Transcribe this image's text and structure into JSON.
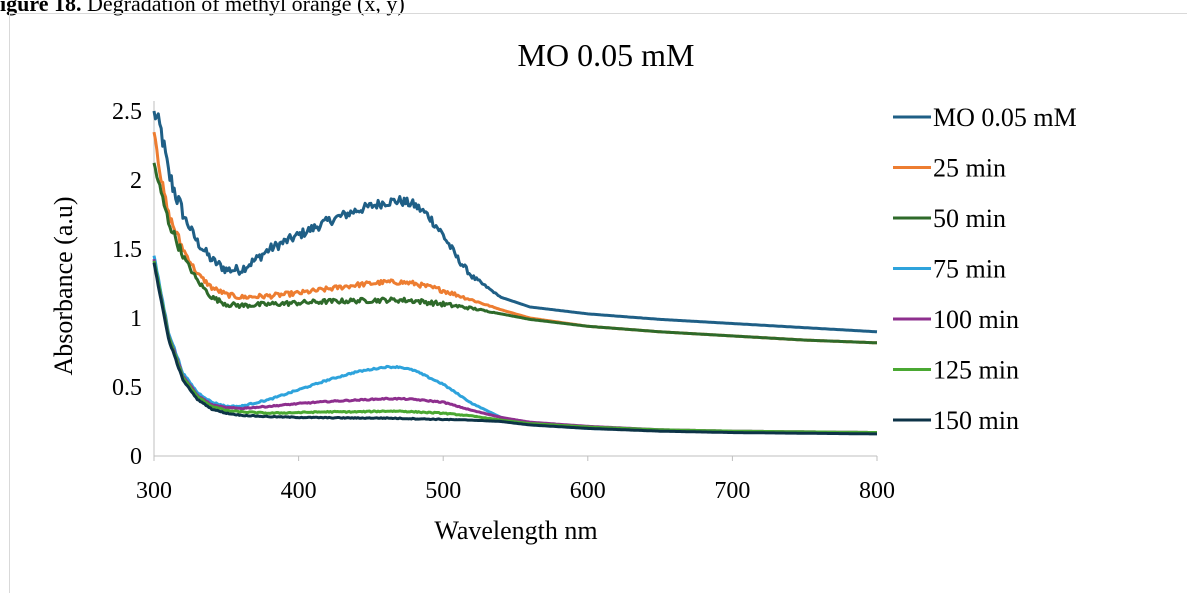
{
  "caption": {
    "bold": "igure 18.",
    "text": " Degradation of methyl orange (x, y)"
  },
  "chart_data": {
    "type": "line",
    "title": "MO 0.05 mM",
    "xlabel": "Wavelength nm",
    "ylabel": "Absorbance (a.u)",
    "xlim": [
      300,
      800
    ],
    "ylim": [
      0,
      2.5
    ],
    "x_ticks": [
      "300",
      "400",
      "500",
      "600",
      "700",
      "800"
    ],
    "y_ticks": [
      "0",
      "0.5",
      "1",
      "1.5",
      "2",
      "2.5"
    ],
    "grid": false,
    "legend_position": "right",
    "series": [
      {
        "name": "MO 0.05 mM",
        "color": "#1f5f86",
        "noise": 0.07,
        "points": [
          [
            300,
            2.5
          ],
          [
            305,
            2.35
          ],
          [
            310,
            2.05
          ],
          [
            320,
            1.75
          ],
          [
            330,
            1.55
          ],
          [
            340,
            1.42
          ],
          [
            350,
            1.35
          ],
          [
            360,
            1.35
          ],
          [
            370,
            1.42
          ],
          [
            380,
            1.5
          ],
          [
            400,
            1.6
          ],
          [
            420,
            1.7
          ],
          [
            440,
            1.78
          ],
          [
            460,
            1.84
          ],
          [
            470,
            1.85
          ],
          [
            480,
            1.82
          ],
          [
            490,
            1.74
          ],
          [
            500,
            1.6
          ],
          [
            510,
            1.43
          ],
          [
            520,
            1.3
          ],
          [
            540,
            1.15
          ],
          [
            560,
            1.08
          ],
          [
            600,
            1.03
          ],
          [
            650,
            0.99
          ],
          [
            700,
            0.96
          ],
          [
            750,
            0.93
          ],
          [
            800,
            0.9
          ]
        ]
      },
      {
        "name": "25 min",
        "color": "#ed7d31",
        "noise": 0.035,
        "points": [
          [
            300,
            2.38
          ],
          [
            305,
            2.0
          ],
          [
            310,
            1.75
          ],
          [
            320,
            1.5
          ],
          [
            330,
            1.32
          ],
          [
            340,
            1.22
          ],
          [
            350,
            1.17
          ],
          [
            360,
            1.15
          ],
          [
            380,
            1.16
          ],
          [
            400,
            1.18
          ],
          [
            420,
            1.21
          ],
          [
            440,
            1.24
          ],
          [
            460,
            1.26
          ],
          [
            470,
            1.26
          ],
          [
            480,
            1.25
          ],
          [
            500,
            1.2
          ],
          [
            520,
            1.13
          ],
          [
            540,
            1.06
          ],
          [
            560,
            1.0
          ],
          [
            600,
            0.94
          ],
          [
            650,
            0.9
          ],
          [
            700,
            0.87
          ],
          [
            750,
            0.84
          ],
          [
            800,
            0.82
          ]
        ]
      },
      {
        "name": "50 min",
        "color": "#2e6a2a",
        "noise": 0.035,
        "points": [
          [
            300,
            2.12
          ],
          [
            305,
            1.9
          ],
          [
            310,
            1.7
          ],
          [
            320,
            1.45
          ],
          [
            330,
            1.27
          ],
          [
            340,
            1.15
          ],
          [
            350,
            1.1
          ],
          [
            360,
            1.09
          ],
          [
            380,
            1.1
          ],
          [
            400,
            1.11
          ],
          [
            420,
            1.12
          ],
          [
            440,
            1.125
          ],
          [
            460,
            1.13
          ],
          [
            470,
            1.13
          ],
          [
            480,
            1.125
          ],
          [
            500,
            1.1
          ],
          [
            520,
            1.07
          ],
          [
            540,
            1.03
          ],
          [
            560,
            0.99
          ],
          [
            600,
            0.94
          ],
          [
            650,
            0.9
          ],
          [
            700,
            0.87
          ],
          [
            750,
            0.84
          ],
          [
            800,
            0.82
          ]
        ]
      },
      {
        "name": "75 min",
        "color": "#2ea3dc",
        "noise": 0.01,
        "points": [
          [
            300,
            1.45
          ],
          [
            310,
            0.9
          ],
          [
            320,
            0.6
          ],
          [
            330,
            0.46
          ],
          [
            340,
            0.39
          ],
          [
            350,
            0.36
          ],
          [
            360,
            0.36
          ],
          [
            380,
            0.41
          ],
          [
            400,
            0.48
          ],
          [
            420,
            0.55
          ],
          [
            440,
            0.61
          ],
          [
            460,
            0.645
          ],
          [
            470,
            0.645
          ],
          [
            480,
            0.62
          ],
          [
            500,
            0.52
          ],
          [
            520,
            0.38
          ],
          [
            540,
            0.28
          ],
          [
            560,
            0.23
          ],
          [
            600,
            0.2
          ],
          [
            650,
            0.185
          ],
          [
            700,
            0.175
          ],
          [
            750,
            0.17
          ],
          [
            800,
            0.165
          ]
        ]
      },
      {
        "name": "100 min",
        "color": "#8e2f8e",
        "noise": 0.008,
        "points": [
          [
            300,
            1.42
          ],
          [
            310,
            0.88
          ],
          [
            320,
            0.58
          ],
          [
            330,
            0.44
          ],
          [
            340,
            0.37
          ],
          [
            350,
            0.35
          ],
          [
            360,
            0.345
          ],
          [
            380,
            0.36
          ],
          [
            400,
            0.38
          ],
          [
            420,
            0.395
          ],
          [
            440,
            0.405
          ],
          [
            460,
            0.415
          ],
          [
            470,
            0.415
          ],
          [
            480,
            0.41
          ],
          [
            500,
            0.39
          ],
          [
            520,
            0.33
          ],
          [
            540,
            0.28
          ],
          [
            560,
            0.245
          ],
          [
            600,
            0.215
          ],
          [
            650,
            0.19
          ],
          [
            700,
            0.18
          ],
          [
            750,
            0.175
          ],
          [
            800,
            0.17
          ]
        ]
      },
      {
        "name": "125 min",
        "color": "#4aa832",
        "noise": 0.008,
        "points": [
          [
            300,
            1.42
          ],
          [
            310,
            0.87
          ],
          [
            320,
            0.57
          ],
          [
            330,
            0.43
          ],
          [
            340,
            0.36
          ],
          [
            350,
            0.33
          ],
          [
            360,
            0.32
          ],
          [
            380,
            0.31
          ],
          [
            400,
            0.315
          ],
          [
            420,
            0.32
          ],
          [
            440,
            0.32
          ],
          [
            460,
            0.325
          ],
          [
            470,
            0.325
          ],
          [
            480,
            0.32
          ],
          [
            500,
            0.31
          ],
          [
            520,
            0.29
          ],
          [
            540,
            0.26
          ],
          [
            560,
            0.235
          ],
          [
            600,
            0.21
          ],
          [
            650,
            0.19
          ],
          [
            700,
            0.18
          ],
          [
            750,
            0.175
          ],
          [
            800,
            0.17
          ]
        ]
      },
      {
        "name": "150 min",
        "color": "#0d3347",
        "noise": 0.006,
        "points": [
          [
            300,
            1.4
          ],
          [
            310,
            0.85
          ],
          [
            320,
            0.55
          ],
          [
            330,
            0.41
          ],
          [
            340,
            0.34
          ],
          [
            350,
            0.31
          ],
          [
            360,
            0.295
          ],
          [
            380,
            0.285
          ],
          [
            400,
            0.28
          ],
          [
            440,
            0.275
          ],
          [
            460,
            0.275
          ],
          [
            480,
            0.27
          ],
          [
            500,
            0.265
          ],
          [
            520,
            0.26
          ],
          [
            540,
            0.25
          ],
          [
            560,
            0.225
          ],
          [
            600,
            0.2
          ],
          [
            650,
            0.18
          ],
          [
            700,
            0.17
          ],
          [
            750,
            0.165
          ],
          [
            800,
            0.16
          ]
        ]
      }
    ]
  }
}
